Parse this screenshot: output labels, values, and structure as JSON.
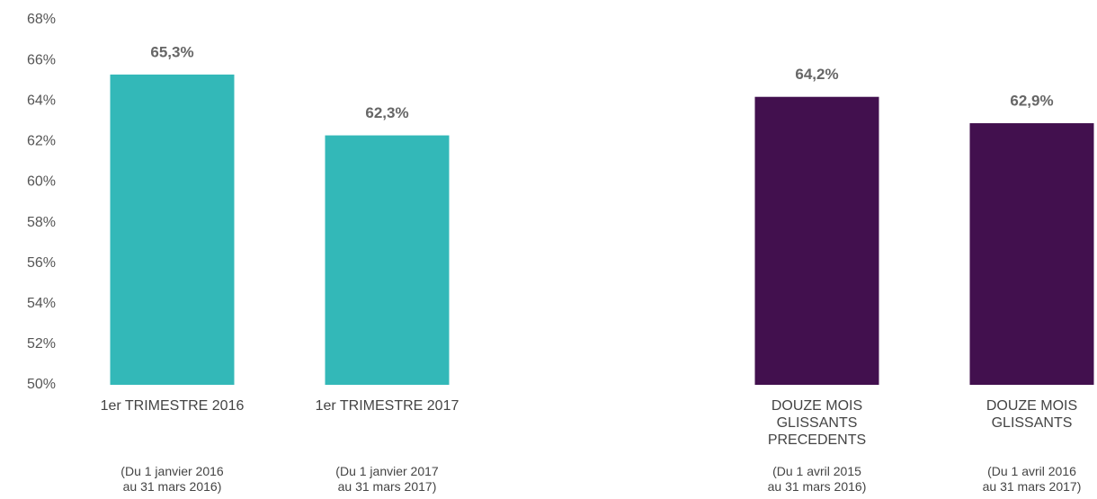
{
  "chart_data": {
    "type": "bar",
    "categories": [
      "1er TRIMESTRE 2016",
      "1er TRIMESTRE 2017",
      null,
      "DOUZE MOIS\nGLISSANTS\nPRECEDENTS",
      "DOUZE MOIS\nGLISSANTS"
    ],
    "category_notes": [
      "(Du 1 janvier 2016\nau 31 mars 2016)",
      "(Du 1 janvier 2017\nau 31 mars 2017)",
      null,
      "(Du 1 avril 2015\nau 31 mars 2016)",
      "(Du 1 avril 2016\nau 31 mars 2017)"
    ],
    "values": [
      65.3,
      62.3,
      null,
      64.2,
      62.9
    ],
    "value_labels": [
      "65,3%",
      "62,3%",
      null,
      "64,2%",
      "62,9%"
    ],
    "colors": [
      "#33b8b8",
      "#33b8b8",
      null,
      "#42104e",
      "#42104e"
    ],
    "ylim": [
      50,
      68
    ],
    "yticks": [
      {
        "value": 50,
        "label": "50%"
      },
      {
        "value": 52,
        "label": "52%"
      },
      {
        "value": 54,
        "label": "54%"
      },
      {
        "value": 56,
        "label": "56%"
      },
      {
        "value": 58,
        "label": "58%"
      },
      {
        "value": 60,
        "label": "60%"
      },
      {
        "value": 62,
        "label": "62%"
      },
      {
        "value": 64,
        "label": "64%"
      },
      {
        "value": 66,
        "label": "66%"
      },
      {
        "value": 68,
        "label": "68%"
      }
    ],
    "grid": false
  }
}
